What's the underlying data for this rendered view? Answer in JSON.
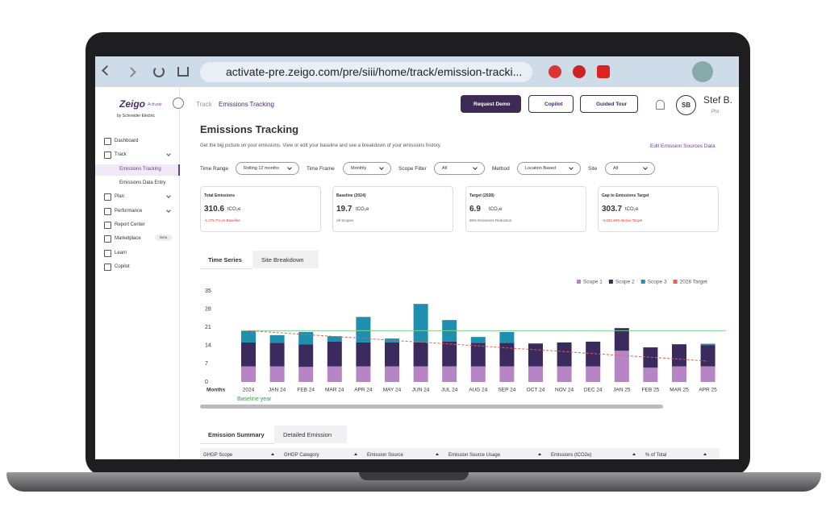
{
  "browser": {
    "url": "activate-pre.zeigo.com/pre/siii/home/track/emission-tracki..."
  },
  "sidebar": {
    "logo": "Zeigo",
    "logo_sub": "Activate",
    "logo_by": "by Schneider Electric",
    "items": [
      "Dashboard",
      "Track",
      "Emissions Tracking",
      "Emissions Data Entry",
      "Plan",
      "Performance",
      "Report Center",
      "Marketplace",
      "Learn",
      "Copilot"
    ],
    "beta": "Beta"
  },
  "header": {
    "breadcrumb_root": "Track",
    "breadcrumb_current": "Emissions Tracking",
    "buttons": [
      "Request Demo",
      "Copilot",
      "Guided Tour"
    ],
    "avatar": "SB",
    "user": "Stef B.",
    "user_sub": "Pro"
  },
  "page": {
    "title": "Emissions Tracking",
    "subtitle": "Get the big picture on your emissions. View or edit your baseline and see a breakdown of your emissions history.",
    "edit_link": "Edit Emission Sources Data"
  },
  "filters": [
    {
      "label": "Time Range",
      "value": "Rolling 12 months"
    },
    {
      "label": "Time Frame",
      "value": "Monthly"
    },
    {
      "label": "Scope Filter",
      "value": "All"
    },
    {
      "label": "Method",
      "value": "Location Based"
    },
    {
      "label": "Site",
      "value": "All"
    }
  ],
  "cards": [
    {
      "title": "Total Emissions",
      "value": "310.6",
      "unit": "tCO₂e",
      "note": "-1,475.7% vs Baseline"
    },
    {
      "title": "Baseline (2024)",
      "value": "19.7",
      "unit": "tCO₂e",
      "note": "All Scopes"
    },
    {
      "title": "Target (2028)",
      "value": "6.9",
      "unit": "tCO₂e",
      "note": "65% Emissions Reduction"
    },
    {
      "title": "Gap to Emissions Target",
      "value": "303.7",
      "unit": "tCO₂e",
      "note": "-4,402.48% Below Target"
    }
  ],
  "chart_tabs": [
    "Time Series",
    "Site Breakdown"
  ],
  "chart_data": {
    "type": "bar",
    "stacked": true,
    "x_label": "Months",
    "annotation": "Baseline year",
    "categories": [
      "2024",
      "JAN 24",
      "FEB 24",
      "MAR 24",
      "APR 24",
      "MAY 24",
      "JUN 24",
      "JUL 24",
      "AUG 24",
      "SEP 24",
      "OCT 24",
      "NOV 24",
      "DEC 24",
      "JAN 25",
      "FEB 25",
      "MAR 25",
      "APR 25"
    ],
    "series": [
      {
        "name": "Scope 1",
        "color": "#b784c6",
        "values": [
          6,
          6,
          5.8,
          6,
          6,
          6,
          6,
          6,
          6,
          6,
          6,
          6,
          6,
          12,
          5.5,
          6,
          6
        ]
      },
      {
        "name": "Scope 2",
        "color": "#3a2a5e",
        "values": [
          9.2,
          9,
          8.7,
          9.5,
          9.2,
          9.2,
          9.2,
          9.5,
          9,
          9,
          8.8,
          9.2,
          9.5,
          8.7,
          7.8,
          8.5,
          8.2
        ]
      },
      {
        "name": "Scope 3",
        "color": "#1f8fb0",
        "values": [
          4.5,
          3,
          4.7,
          2.1,
          9.8,
          1.5,
          14.8,
          8.3,
          2.3,
          4.2,
          0,
          0,
          0,
          0,
          0,
          0,
          0.5
        ]
      },
      {
        "name": "2028 Target",
        "color": "#e8604c",
        "type": "line",
        "dashed": true,
        "values": [
          19.7,
          19.0,
          18.2,
          17.5,
          16.8,
          16.0,
          15.3,
          14.6,
          13.9,
          13.1,
          12.4,
          11.7,
          10.9,
          10.2,
          9.5,
          8.8,
          8.0
        ]
      }
    ],
    "baseline": 19.7,
    "baseline_color": "#7fcf8f",
    "ylim": [
      0,
      35
    ],
    "yticks": [
      0,
      7,
      14,
      21,
      28,
      35
    ],
    "grid": false,
    "legend": "top-right"
  },
  "table": {
    "tabs": [
      "Emission Summary",
      "Detailed Emission"
    ],
    "columns": [
      "GHGP Scope",
      "GHGP Category",
      "Emission Source",
      "Emission Source Usage",
      "Emissions (tCO2e)",
      "% of Total"
    ]
  }
}
